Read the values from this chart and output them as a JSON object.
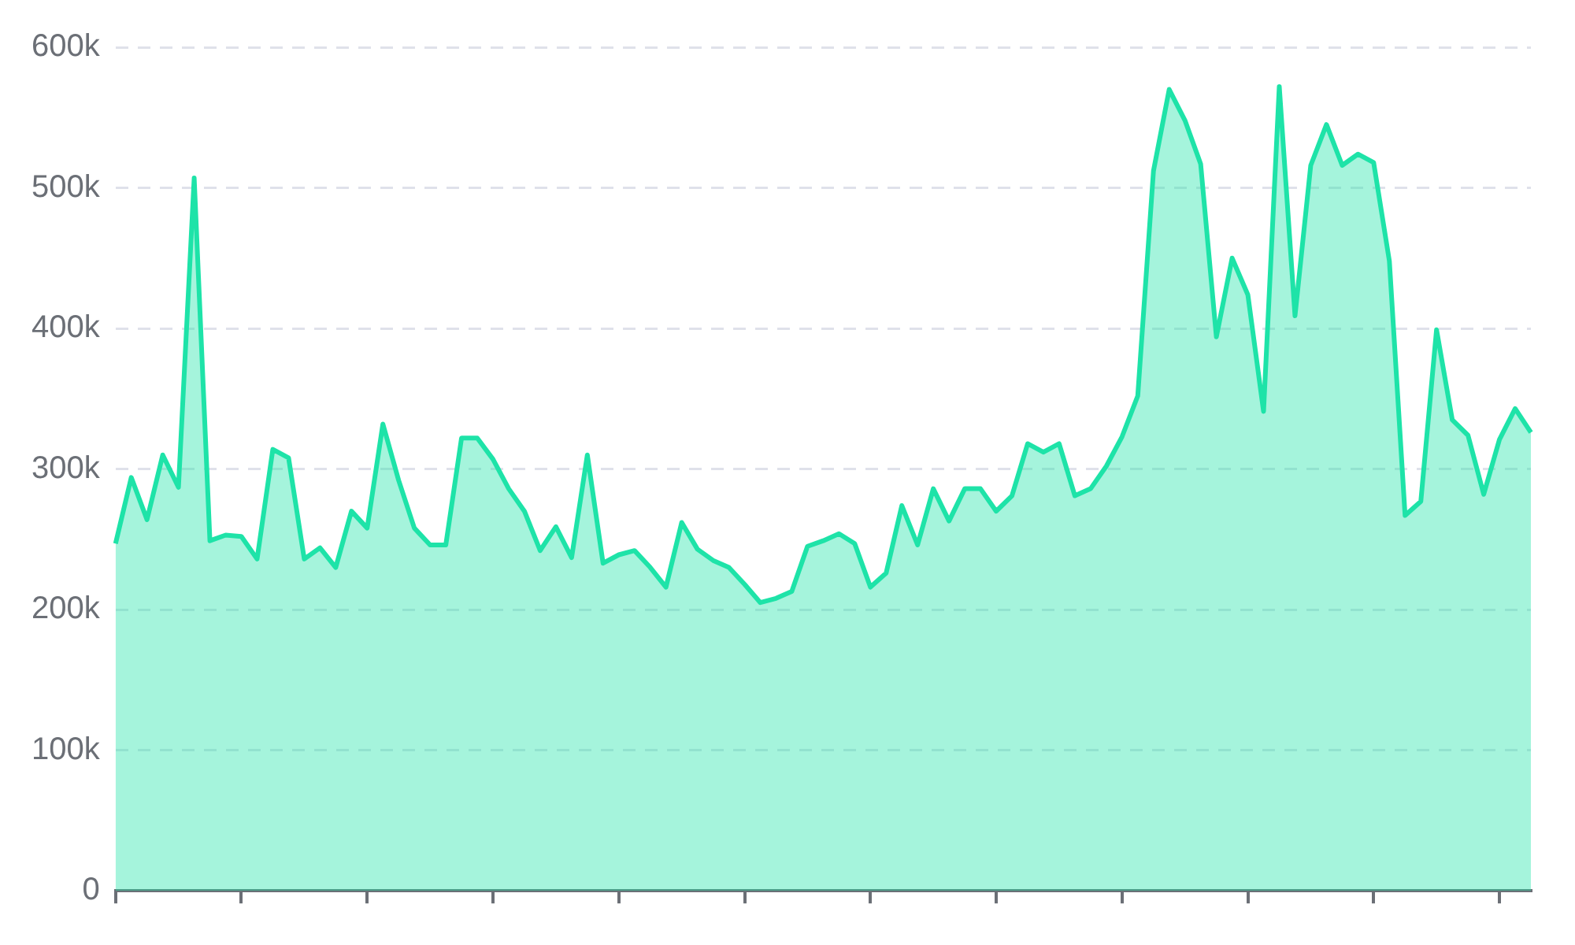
{
  "chart_data": {
    "type": "area",
    "categories": [
      null,
      null,
      null,
      null,
      null,
      null,
      null,
      null,
      null,
      null,
      null,
      null,
      null,
      null,
      null,
      null,
      null,
      null,
      null,
      null,
      null,
      null,
      null,
      null,
      null,
      null,
      null,
      null,
      null,
      null,
      null,
      null,
      null,
      null,
      null,
      null,
      null,
      null,
      null,
      null,
      null,
      null,
      null,
      null,
      null,
      null,
      null,
      null,
      null,
      null,
      null,
      null,
      null,
      null,
      null,
      null,
      null,
      null,
      null,
      null,
      null,
      null,
      null,
      null,
      null,
      null,
      null,
      null,
      null,
      null,
      null,
      null,
      null,
      null,
      null,
      null,
      null,
      null,
      null,
      null,
      null,
      null,
      null,
      null,
      null,
      null,
      null,
      null,
      null,
      null,
      null
    ],
    "series": [
      {
        "color": "#1ee3a8",
        "values": [
          247000,
          294000,
          264000,
          310000,
          287000,
          507000,
          249000,
          253000,
          252000,
          236000,
          314000,
          308000,
          236000,
          244000,
          230000,
          270000,
          258000,
          332000,
          292000,
          258000,
          246000,
          246000,
          322000,
          322000,
          307000,
          286000,
          270000,
          242000,
          259000,
          237000,
          310000,
          233000,
          239000,
          242000,
          230000,
          216000,
          262000,
          243000,
          235000,
          230000,
          218000,
          205000,
          208000,
          213000,
          245000,
          249000,
          254000,
          247000,
          216000,
          226000,
          274000,
          246000,
          286000,
          263000,
          286000,
          286000,
          270000,
          281000,
          318000,
          312000,
          318000,
          281000,
          286000,
          302000,
          323000,
          352000,
          512000,
          570000,
          548000,
          517000,
          394000,
          450000,
          424000,
          341000,
          572000,
          409000,
          516000,
          545000,
          516000,
          524000,
          518000,
          448000,
          267000,
          277000,
          399000,
          335000,
          324000,
          282000,
          321000,
          343000,
          326000
        ]
      }
    ],
    "ylim": [
      0,
      600000
    ],
    "yticks": [
      0,
      {
        "value": 100000,
        "label": "100k"
      },
      {
        "value": 200000,
        "label": "200k"
      },
      {
        "value": 300000,
        "label": "300k"
      },
      {
        "value": 400000,
        "label": "400k"
      },
      {
        "value": 500000,
        "label": "500k"
      },
      {
        "value": 600000,
        "label": "600k"
      }
    ],
    "grid": "y",
    "legend": false,
    "marker": "none",
    "line_style": "solid"
  }
}
